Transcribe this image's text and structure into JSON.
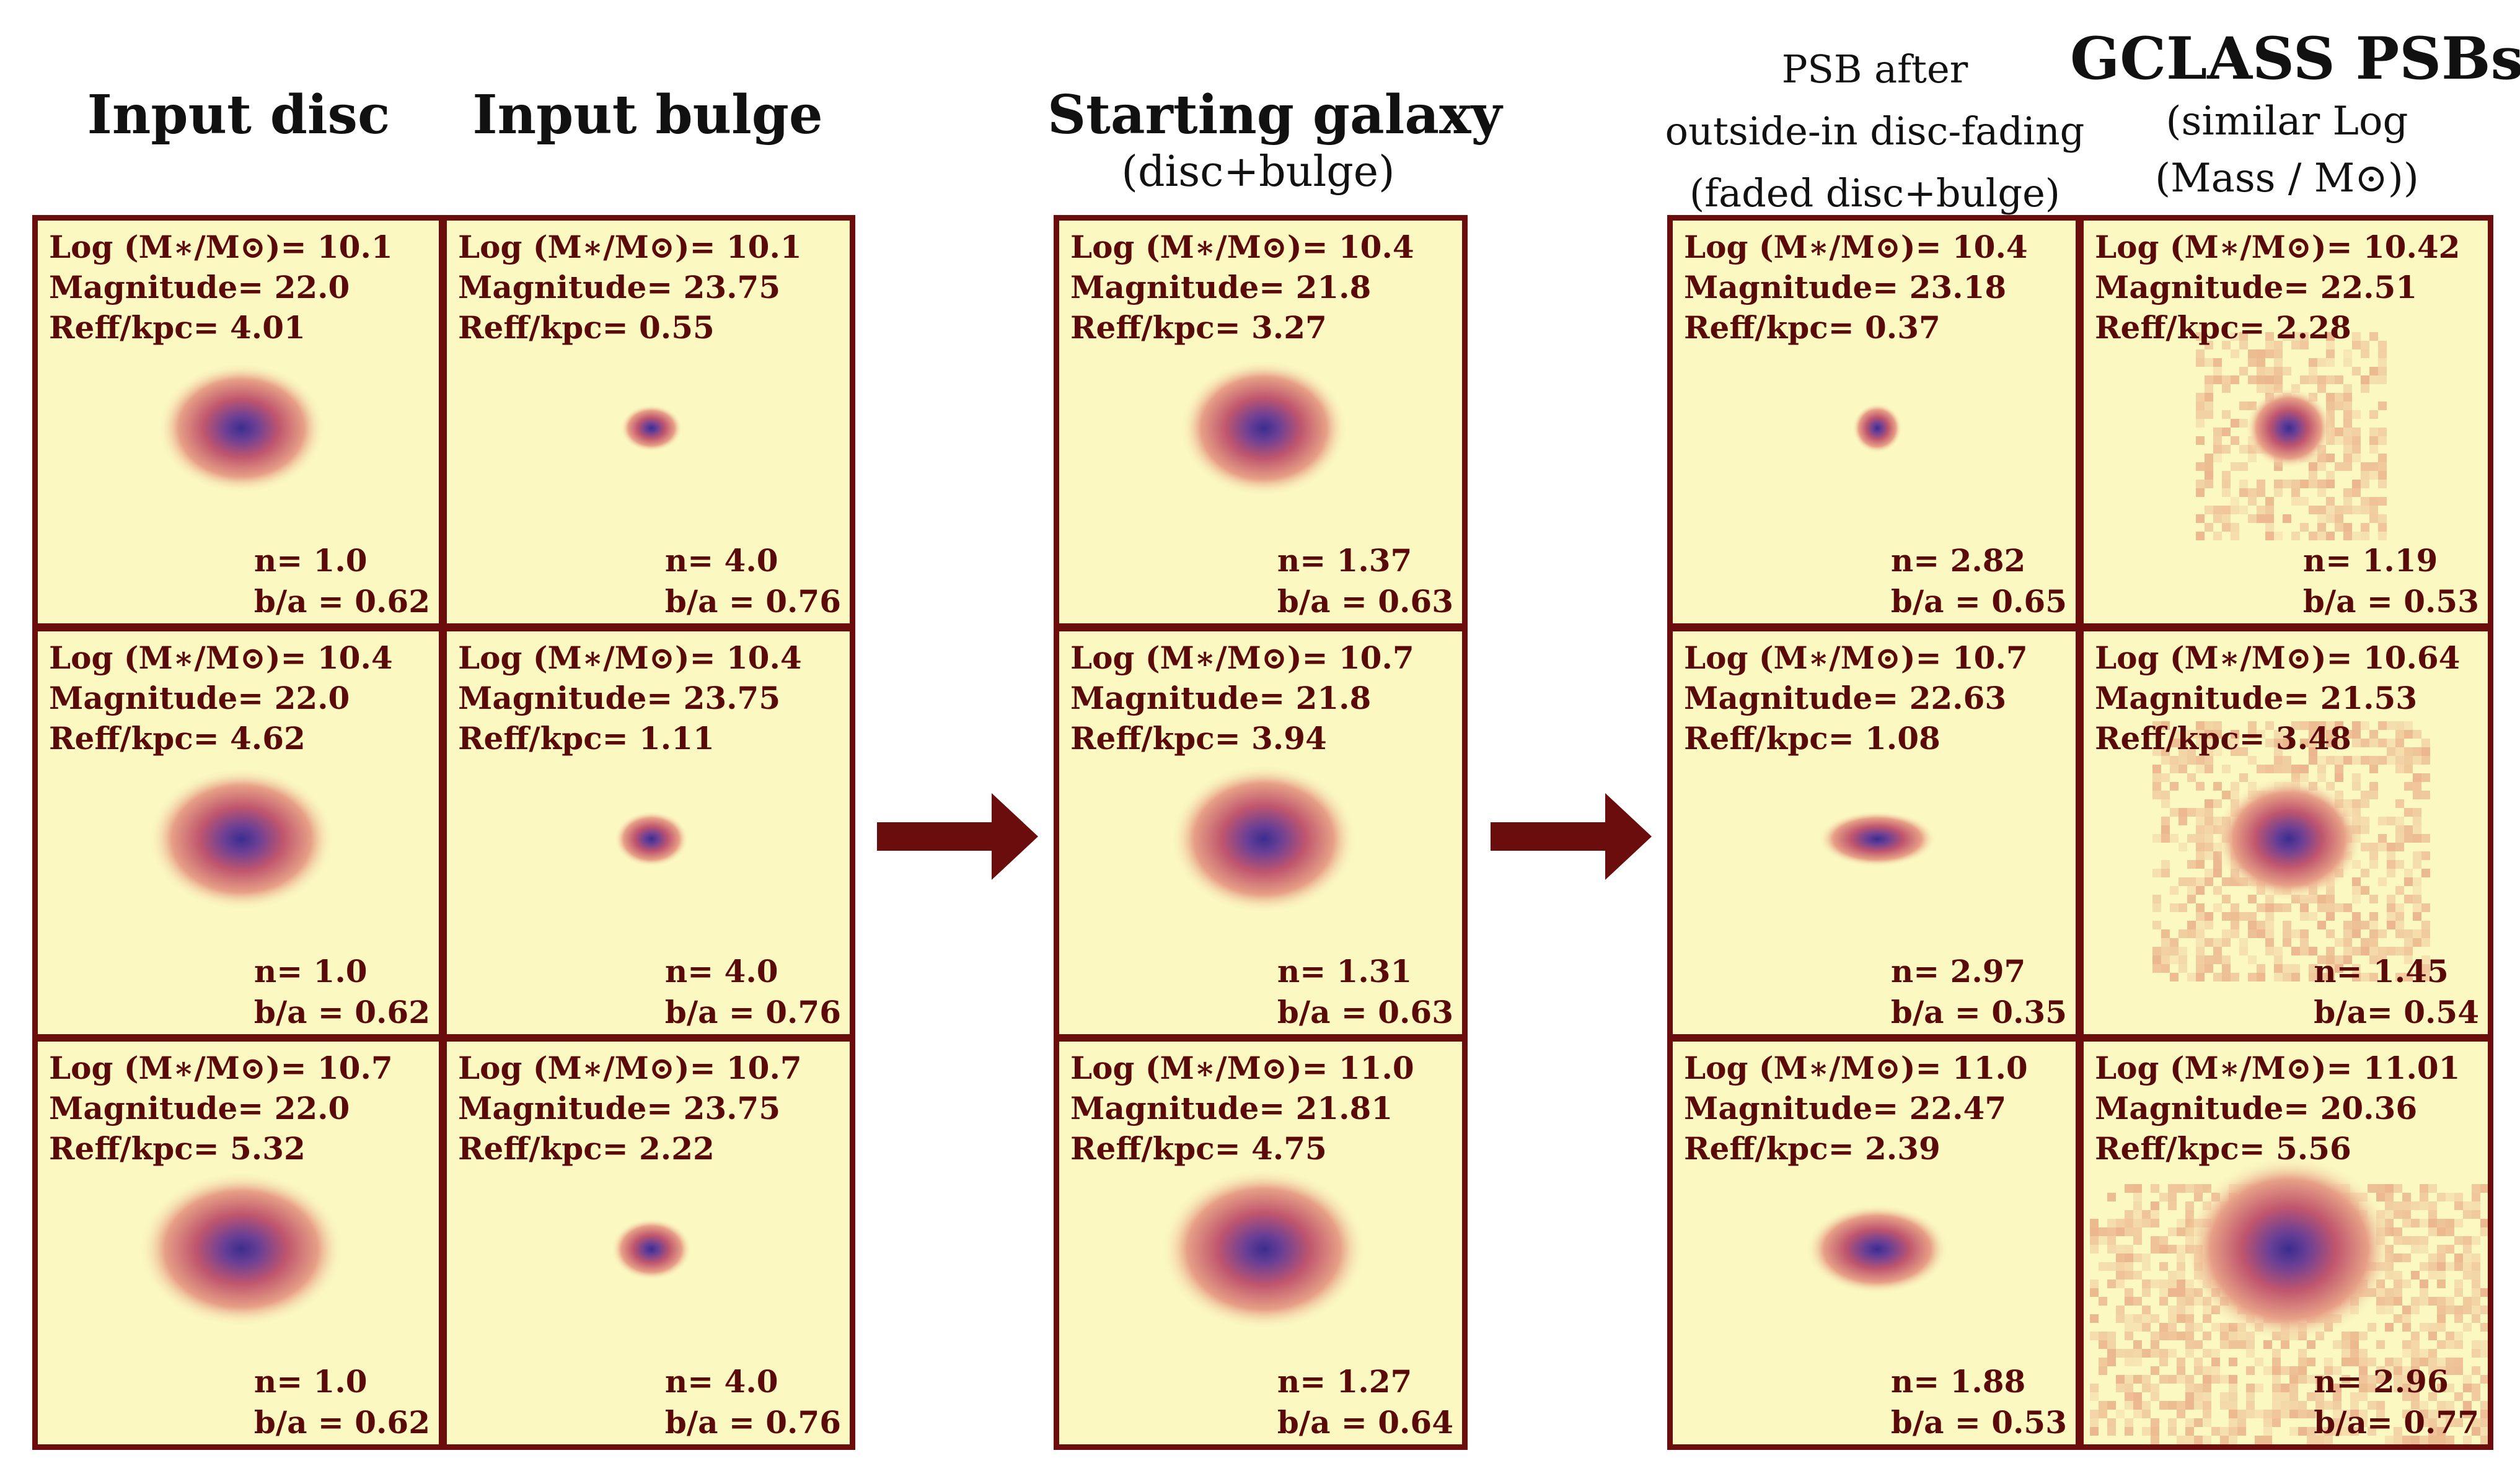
{
  "titles": {
    "input_disc": "Input disc",
    "input_bulge": "Input bulge",
    "starting_line1": "Starting galaxy",
    "starting_line2": "(disc+bulge)",
    "psb_line1": "PSB after",
    "psb_line2": "outside-in disc-fading",
    "psb_line3": "(faded disc+bulge)",
    "gclass_line1": "GCLASS PSBs",
    "gclass_line2": "(similar Log",
    "gclass_line3": "(Mass / M⊙))"
  },
  "labels": {
    "log_prefix": "Log (M∗/M⊙)= ",
    "mag_prefix": "Magnitude= ",
    "reff_prefix": "Reff/kpc= ",
    "n_prefix": "n= ",
    "ba_prefix": "b/a = ",
    "ba_prefix_gclass": "b/a= "
  },
  "panels": {
    "disc": [
      {
        "log_mass": "10.1",
        "magnitude": "22.0",
        "reff": "4.01",
        "n": "1.0",
        "ba": "0.62"
      },
      {
        "log_mass": "10.4",
        "magnitude": "22.0",
        "reff": "4.62",
        "n": "1.0",
        "ba": "0.62"
      },
      {
        "log_mass": "10.7",
        "magnitude": "22.0",
        "reff": "5.32",
        "n": "1.0",
        "ba": "0.62"
      }
    ],
    "bulge": [
      {
        "log_mass": "10.1",
        "magnitude": "23.75",
        "reff": "0.55",
        "n": "4.0",
        "ba": "0.76"
      },
      {
        "log_mass": "10.4",
        "magnitude": "23.75",
        "reff": "1.11",
        "n": "4.0",
        "ba": "0.76"
      },
      {
        "log_mass": "10.7",
        "magnitude": "23.75",
        "reff": "2.22",
        "n": "4.0",
        "ba": "0.76"
      }
    ],
    "starting": [
      {
        "log_mass": "10.4",
        "magnitude": "21.8",
        "reff": "3.27",
        "n": "1.37",
        "ba": "0.63"
      },
      {
        "log_mass": "10.7",
        "magnitude": "21.8",
        "reff": "3.94",
        "n": "1.31",
        "ba": "0.63"
      },
      {
        "log_mass": "11.0",
        "magnitude": "21.81",
        "reff": "4.75",
        "n": "1.27",
        "ba": "0.64"
      }
    ],
    "psb": [
      {
        "log_mass": "10.4",
        "magnitude": "23.18",
        "reff": "0.37",
        "n": "2.82",
        "ba": "0.65"
      },
      {
        "log_mass": "10.7",
        "magnitude": "22.63",
        "reff": "1.08",
        "n": "2.97",
        "ba": "0.35"
      },
      {
        "log_mass": "11.0",
        "magnitude": "22.47",
        "reff": "2.39",
        "n": "1.88",
        "ba": "0.53"
      }
    ],
    "gclass": [
      {
        "log_mass": "10.42",
        "magnitude": "22.51",
        "reff": "2.28",
        "n": "1.19",
        "ba": "0.53"
      },
      {
        "log_mass": "10.64",
        "magnitude": "21.53",
        "reff": "3.48",
        "n": "1.45",
        "ba": "0.54"
      },
      {
        "log_mass": "11.01",
        "magnitude": "20.36",
        "reff": "5.56",
        "n": "2.96",
        "ba": "0.77"
      }
    ]
  },
  "colors": {
    "panel_bg": "#fbf8c2",
    "border": "#6b0d0d",
    "text": "#5b0a0a",
    "arrow": "#6b0d0d"
  }
}
